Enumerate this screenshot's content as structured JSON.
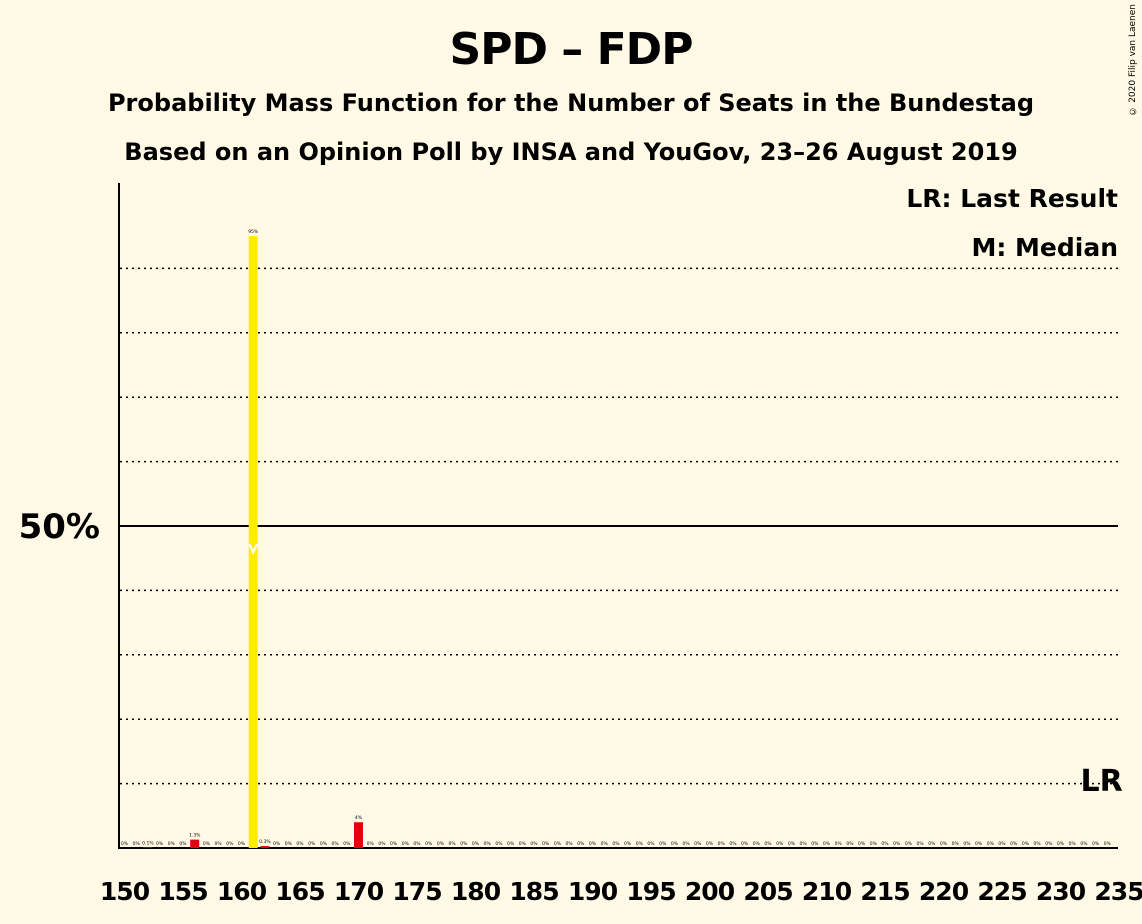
{
  "title": "SPD – FDP",
  "subtitle1": "Probability Mass Function for the Number of Seats in the Bundestag",
  "subtitle2": "Based on an Opinion Poll by INSA and YouGov, 23–26 August 2019",
  "copyright": "© 2020 Filip van Laenen",
  "legend": {
    "lr": "LR: Last Result",
    "median": "M: Median"
  },
  "colors": {
    "background": "#FFF9E5",
    "bar": "#E3000F",
    "median_bar": "#FFED00",
    "axis": "#000000"
  },
  "chart_data": {
    "type": "bar",
    "x_start": 150,
    "x_end": 235,
    "x_tick_step": 5,
    "ylim": [
      0,
      100
    ],
    "y_label_value": 50,
    "y_label_text": "50%",
    "grid": "dotted every 10%",
    "median_seat": 161,
    "last_result_seat": 233,
    "last_result_label": "LR",
    "x_tick_labels": [
      "150",
      "155",
      "160",
      "165",
      "170",
      "175",
      "180",
      "185",
      "190",
      "195",
      "200",
      "205",
      "210",
      "215",
      "220",
      "225",
      "230",
      "235"
    ],
    "values": [
      0,
      0,
      0.1,
      0,
      0,
      0,
      1.3,
      0,
      0,
      0,
      0,
      95,
      0.3,
      0,
      0,
      0,
      0,
      0,
      0,
      0,
      4,
      0,
      0,
      0,
      0,
      0,
      0,
      0,
      0,
      0,
      0,
      0,
      0,
      0,
      0,
      0,
      0,
      0,
      0,
      0,
      0,
      0,
      0,
      0,
      0,
      0,
      0,
      0,
      0,
      0,
      0,
      0,
      0,
      0,
      0,
      0,
      0,
      0,
      0,
      0,
      0,
      0,
      0,
      0,
      0,
      0,
      0,
      0,
      0,
      0,
      0,
      0,
      0,
      0,
      0,
      0,
      0,
      0,
      0,
      0,
      0,
      0,
      0,
      0,
      0
    ],
    "value_labels": [
      "0%",
      "0%",
      "0.1%",
      "0%",
      "0%",
      "0%",
      "1.3%",
      "0%",
      "0%",
      "0%",
      "0%",
      "95%",
      "0.3%",
      "0%",
      "0%",
      "0%",
      "0%",
      "0%",
      "0%",
      "0%",
      "4%",
      "0%",
      "0%",
      "0%",
      "0%",
      "0%",
      "0%",
      "0%",
      "0%",
      "0%",
      "0%",
      "0%",
      "0%",
      "0%",
      "0%",
      "0%",
      "0%",
      "0%",
      "0%",
      "0%",
      "0%",
      "0%",
      "0%",
      "0%",
      "0%",
      "0%",
      "0%",
      "0%",
      "0%",
      "0%",
      "0%",
      "0%",
      "0%",
      "0%",
      "0%",
      "0%",
      "0%",
      "0%",
      "0%",
      "0%",
      "0%",
      "0%",
      "0%",
      "0%",
      "0%",
      "0%",
      "0%",
      "0%",
      "0%",
      "0%",
      "0%",
      "0%",
      "0%",
      "0%",
      "0%",
      "0%",
      "0%",
      "0%",
      "0%",
      "0%",
      "0%",
      "0%",
      "0%",
      "0%",
      "0%"
    ]
  }
}
